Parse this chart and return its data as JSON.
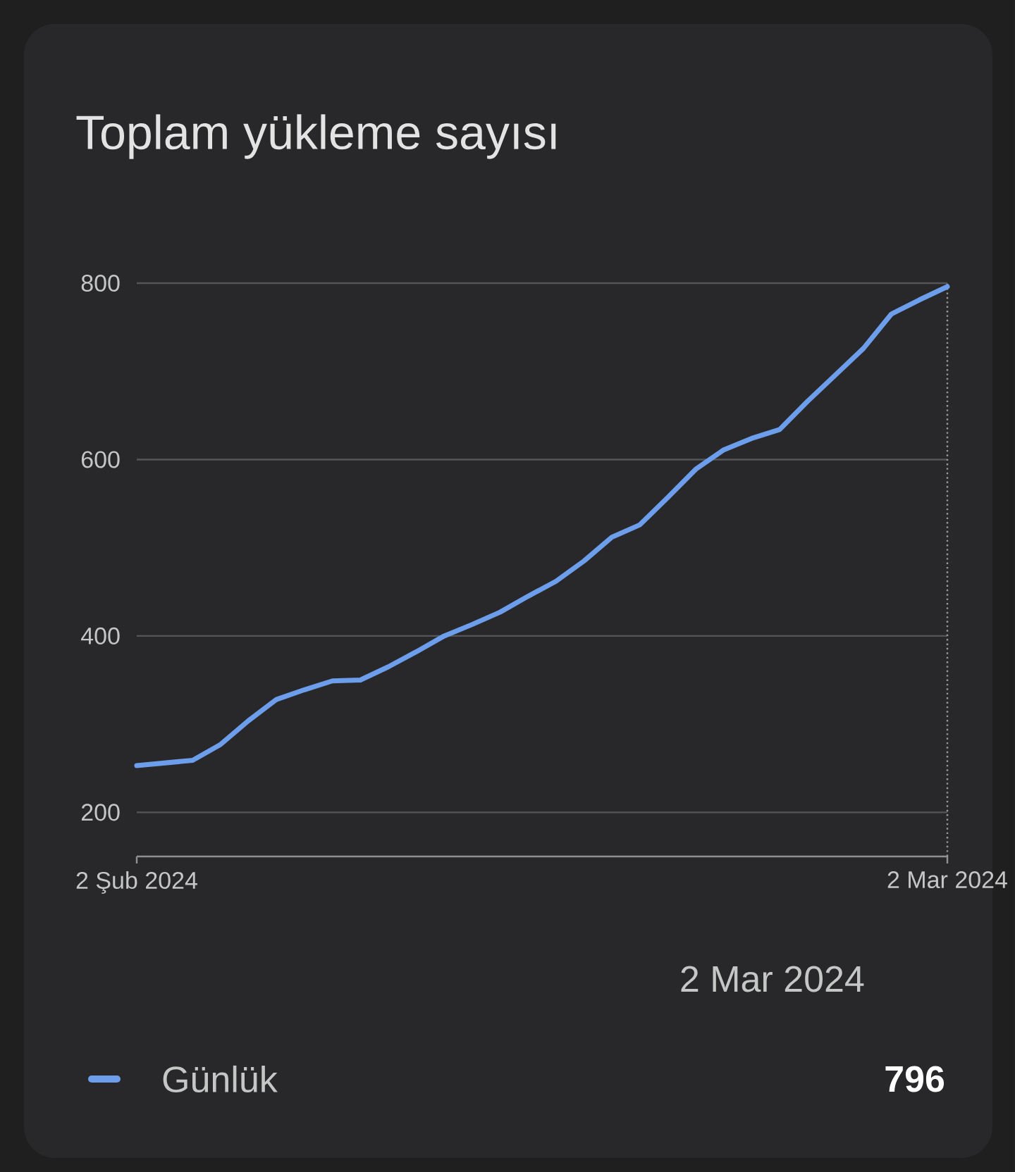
{
  "chart_data": {
    "type": "line",
    "title": "Toplam yükleme sayısı",
    "x": [
      "2024-02-02",
      "2024-02-04",
      "2024-02-05",
      "2024-02-06",
      "2024-02-07",
      "2024-02-08",
      "2024-02-09",
      "2024-02-10",
      "2024-02-11",
      "2024-02-12",
      "2024-02-13",
      "2024-02-14",
      "2024-02-15",
      "2024-02-16",
      "2024-02-17",
      "2024-02-18",
      "2024-02-19",
      "2024-02-20",
      "2024-02-21",
      "2024-02-22",
      "2024-02-23",
      "2024-02-24",
      "2024-02-25",
      "2024-02-26",
      "2024-02-27",
      "2024-02-28",
      "2024-02-29",
      "2024-03-01",
      "2024-03-02"
    ],
    "series": [
      {
        "name": "Günlük",
        "color": "#6d9eeb",
        "values": [
          253,
          259,
          277,
          304,
          328,
          339,
          349,
          350,
          365,
          382,
          400,
          413,
          427,
          445,
          462,
          485,
          512,
          526,
          557,
          589,
          611,
          624,
          634,
          666,
          696,
          726,
          765,
          781,
          796
        ]
      }
    ],
    "xlim": [
      "2024-02-02",
      "2024-03-02"
    ],
    "xticks": [
      {
        "value": "2024-02-02",
        "label": "2 Şub 2024"
      },
      {
        "value": "2024-03-02",
        "label": "2 Mar 2024"
      }
    ],
    "ylim": [
      150,
      800
    ],
    "yticks": [
      200,
      400,
      600,
      800
    ],
    "grid": "y",
    "legend": "bottom",
    "marker": "none",
    "line_style": "solid",
    "ref_lines": [
      {
        "axis": "x",
        "value": "2024-03-02",
        "label": null,
        "color": "#9a9a9a",
        "line_style": "dotted"
      }
    ],
    "annotations": [
      "2 Mar 2024",
      "796"
    ]
  }
}
